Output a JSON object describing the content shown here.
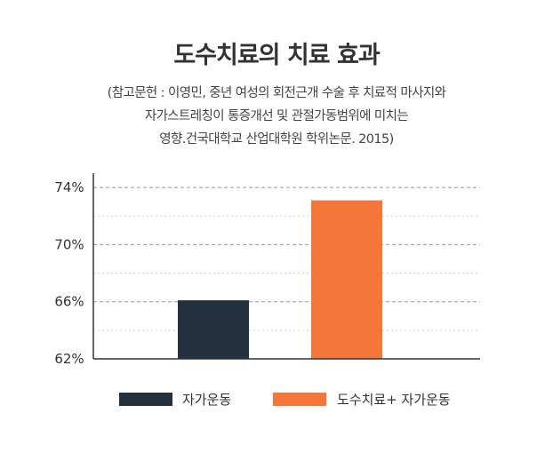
{
  "title": "도수치료의 치료 효과",
  "subtitle_lines": [
    "(참고문헌 : 이영민, 중년 여성의 회전근개 수술 후 치료적 마사지와",
    "자가스트레칭이 통증개선 및 관절가동범위에 미치는",
    "영향.건국대학교 산업대학원 학위논문. 2015)"
  ],
  "colors": {
    "series1": "#23303e",
    "series2": "#f4763a",
    "grid": "#999999",
    "axis": "#333333"
  },
  "chart_data": {
    "type": "bar",
    "title": "",
    "xlabel": "",
    "ylabel": "",
    "ylim": [
      62,
      75
    ],
    "yticks": [
      62,
      66,
      70,
      74
    ],
    "ytick_labels": [
      "62%",
      "66%",
      "70%",
      "74%"
    ],
    "grid": true,
    "legend_position": "bottom",
    "series": [
      {
        "name": "자가운동",
        "values": [
          66.1
        ]
      },
      {
        "name": "도수치료+ 자가운동",
        "values": [
          73.1
        ]
      }
    ]
  }
}
